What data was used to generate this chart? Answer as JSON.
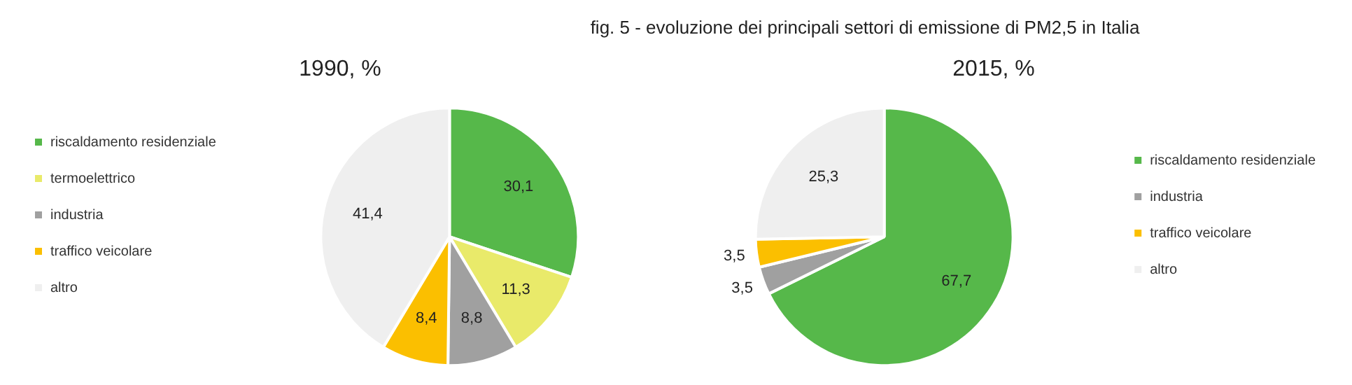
{
  "chart_data": [
    {
      "type": "pie",
      "title": "1990, %",
      "annotations": [
        "fig. 5 - evoluzione dei principali settori di emissione di PM2,5 in Italia"
      ],
      "categories": [
        "riscaldamento residenziale",
        "termoelettrico",
        "industria",
        "traffico veicolare",
        "altro"
      ],
      "values": [
        30.1,
        11.3,
        8.8,
        8.4,
        41.4
      ],
      "value_labels": [
        "30,1",
        "11,3",
        "8,8",
        "8,4",
        "41,4"
      ],
      "colors": [
        "#56b84a",
        "#e9ea6a",
        "#a0a0a0",
        "#fbbf00",
        "#efefef"
      ],
      "legend": "left"
    },
    {
      "type": "pie",
      "title": "2015, %",
      "categories": [
        "riscaldamento residenziale",
        "industria",
        "traffico veicolare",
        "altro"
      ],
      "values": [
        67.7,
        3.5,
        3.5,
        25.3
      ],
      "value_labels": [
        "67,7",
        "3,5",
        "3,5",
        "25,3"
      ],
      "colors": [
        "#56b84a",
        "#a0a0a0",
        "#fbbf00",
        "#efefef"
      ],
      "legend": "right"
    }
  ]
}
